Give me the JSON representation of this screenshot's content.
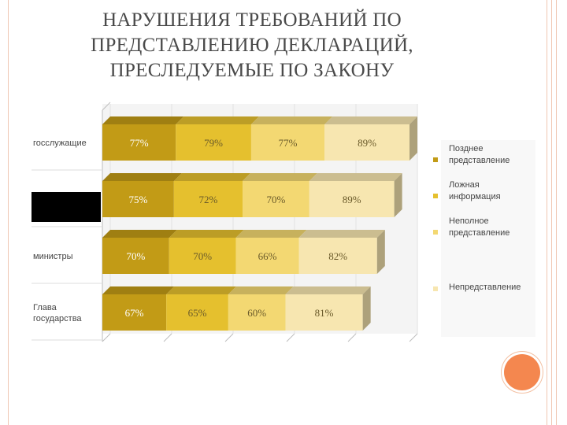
{
  "title": {
    "line1": "НАРУШЕНИЯ ТРЕБОВАНИЙ ПО",
    "line2": "ПРЕДСТАВЛЕНИЮ ДЕКЛАРАЦИЙ,",
    "line3": "ПРЕСЛЕДУЕМЫЕ ПО ЗАКОНУ"
  },
  "chart_data": {
    "type": "bar",
    "stacked": true,
    "orientation": "horizontal",
    "categories": [
      "госслужащие",
      "",
      "министры",
      "Глава государства"
    ],
    "series": [
      {
        "name": "Позднее представление",
        "values": [
          77,
          75,
          70,
          67
        ],
        "labels": [
          "77%",
          "75%",
          "70%",
          "67%"
        ],
        "color": "#c29b16"
      },
      {
        "name": "Ложная информация",
        "values": [
          79,
          72,
          70,
          65
        ],
        "labels": [
          "79%",
          "72%",
          "70%",
          "65%"
        ],
        "color": "#e5c02e"
      },
      {
        "name": "Неполное представление",
        "values": [
          77,
          70,
          66,
          60
        ],
        "labels": [
          "77%",
          "70%",
          "66%",
          "60%"
        ],
        "color": "#f3d872"
      },
      {
        "name": "Непредставление",
        "values": [
          89,
          89,
          82,
          81
        ],
        "labels": [
          "89%",
          "89%",
          "82%",
          "81%"
        ],
        "color": "#f7e6b0"
      }
    ],
    "legend_position": "right",
    "grid": true,
    "redacted_category_index": 1
  }
}
